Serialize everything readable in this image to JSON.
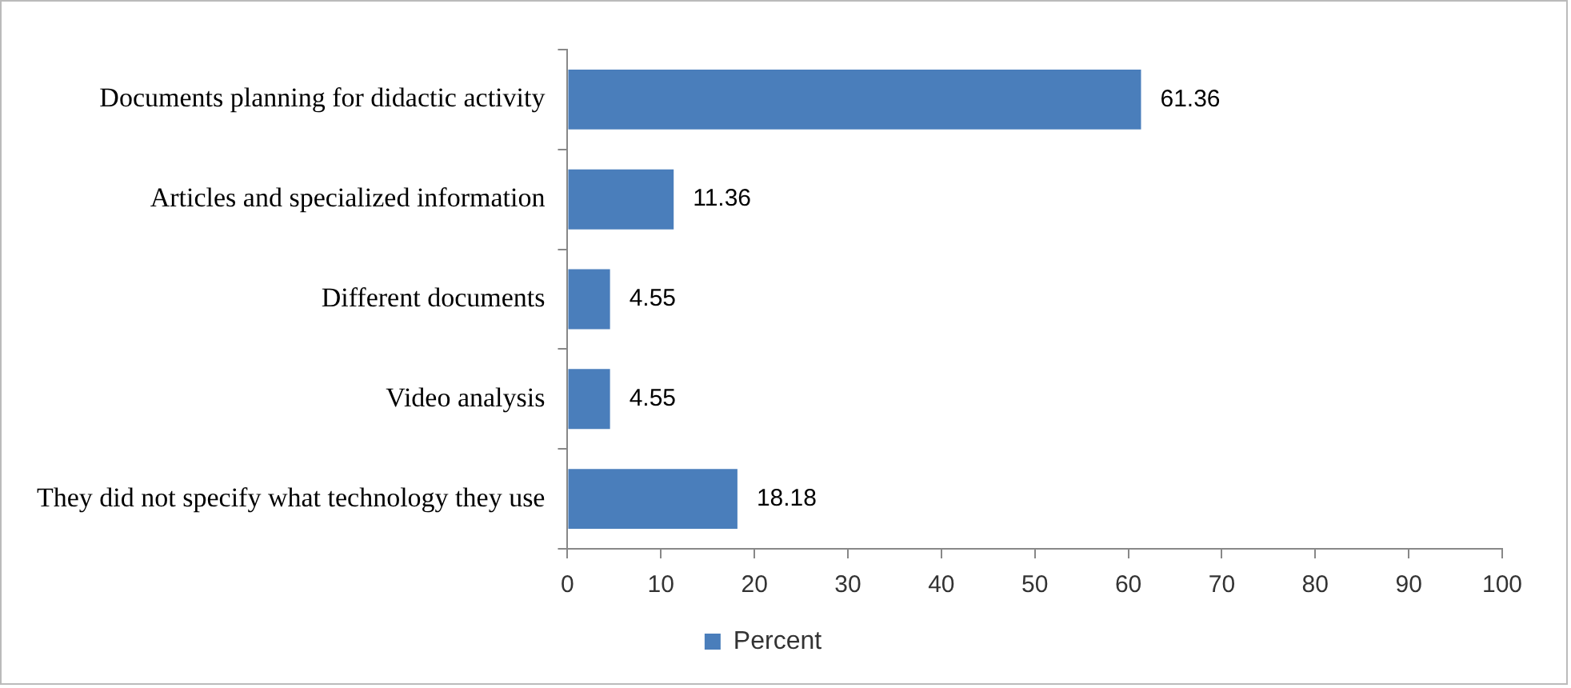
{
  "chart_data": {
    "type": "bar",
    "orientation": "horizontal",
    "categories": [
      "Documents planning for didactic activity",
      "Articles and specialized information",
      "Different documents",
      "Video analysis",
      "They did not specify what technology they use"
    ],
    "series": [
      {
        "name": "Percent",
        "color": "#4a7ebb",
        "values": [
          61.36,
          11.36,
          4.55,
          4.55,
          18.18
        ]
      }
    ],
    "xlim": [
      0,
      100
    ],
    "xticks": [
      0,
      10,
      20,
      30,
      40,
      50,
      60,
      70,
      80,
      90,
      100
    ],
    "data_labels": true,
    "grid": false,
    "legend": "bottom"
  }
}
